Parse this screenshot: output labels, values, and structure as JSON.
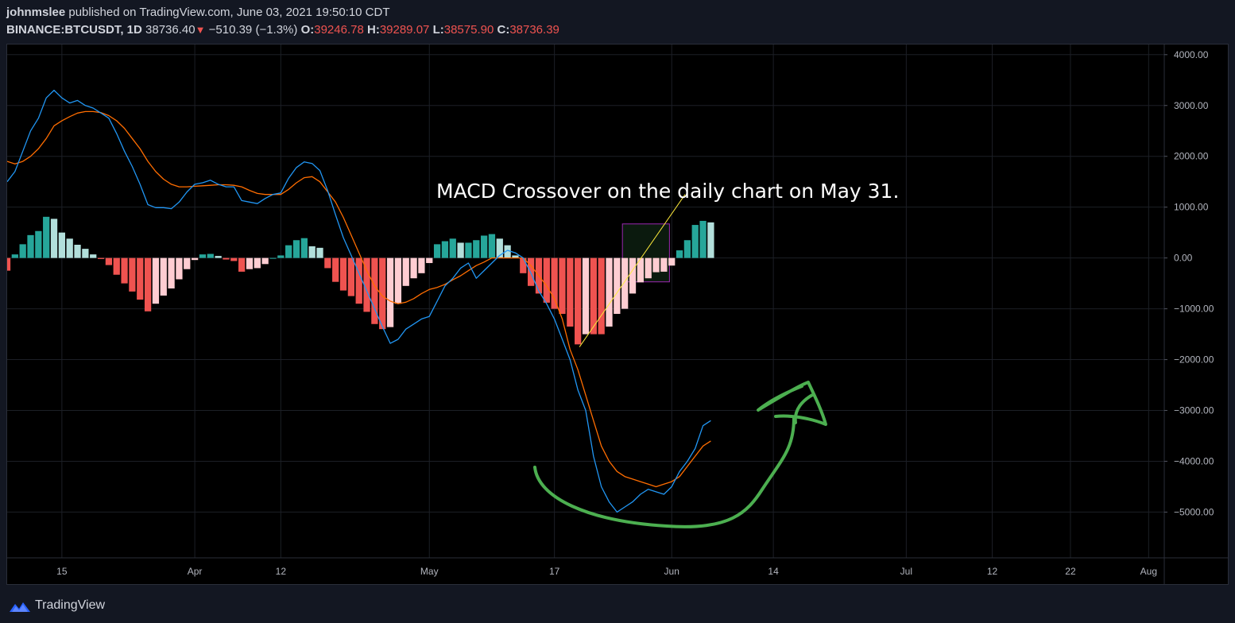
{
  "header": {
    "author": "johnmslee",
    "published_text": " published on TradingView.com, June 03, 2021 19:50:10 CDT",
    "symbol": "BINANCE:BTCUSDT, 1D",
    "price": "38736.40",
    "change_icon": "down-triangle-icon",
    "change": "−510.39 (−1.3%)",
    "open_label": "O:",
    "open": "39246.78",
    "high_label": "H:",
    "high": "39289.07",
    "low_label": "L:",
    "low": "38575.90",
    "close_label": "C:",
    "close": "38736.39"
  },
  "footer": {
    "brand": "TradingView",
    "logo_icon": "tradingview-logo-icon"
  },
  "colors": {
    "macd_line": "#2196f3",
    "signal_line": "#ff6d00",
    "hist_pos_rising": "#26a69a",
    "hist_pos_falling": "#b2dfdb",
    "hist_neg_falling": "#ef5350",
    "hist_neg_rising": "#ffcdd2",
    "drawing_green": "#4caf50",
    "trend_line": "#ffeb3b",
    "box_border": "#9c27b0",
    "box_fill": "#0d1f10"
  },
  "chart_data": {
    "type": "line",
    "title": "",
    "annotation": "MACD Crossover on the daily chart on May 31.",
    "x_axis": {
      "tick_labels": [
        "15",
        "Apr",
        "12",
        "May",
        "17",
        "Jun",
        "14",
        "Jul",
        "12",
        "22",
        "Aug"
      ],
      "tick_dates": [
        "2021-03-15",
        "2021-04-01",
        "2021-04-12",
        "2021-05-01",
        "2021-05-17",
        "2021-06-01",
        "2021-06-14",
        "2021-07-01",
        "2021-07-12",
        "2021-07-22",
        "2021-08-01"
      ],
      "range": [
        "2021-03-08",
        "2021-08-03"
      ]
    },
    "y_axis": {
      "tick_labels": [
        "4000.00",
        "3000.00",
        "2000.00",
        "1000.00",
        "0.00",
        "−1000.00",
        "−2000.00",
        "−3000.00",
        "−4000.00",
        "−5000.00"
      ],
      "ylim": [
        -5900,
        4200
      ],
      "grid": true
    },
    "start_date": "2021-03-08",
    "series": [
      {
        "role": "macd",
        "values": [
          1500,
          1700,
          2100,
          2500,
          2750,
          3150,
          3300,
          3150,
          3050,
          3100,
          3000,
          2950,
          2850,
          2750,
          2450,
          2100,
          1800,
          1450,
          1050,
          990,
          990,
          970,
          1100,
          1300,
          1450,
          1480,
          1530,
          1450,
          1400,
          1400,
          1130,
          1100,
          1070,
          1170,
          1250,
          1280,
          1570,
          1780,
          1890,
          1860,
          1720,
          1320,
          850,
          400,
          50,
          -300,
          -650,
          -1000,
          -1350,
          -1680,
          -1600,
          -1400,
          -1300,
          -1200,
          -1150,
          -850,
          -550,
          -400,
          -200,
          -100,
          -400,
          -250,
          -100,
          50,
          150,
          100,
          0,
          -300,
          -650,
          -900,
          -1200,
          -1600,
          -2000,
          -2600,
          -3000,
          -3900,
          -4500,
          -4800,
          -5000,
          -4900,
          -4800,
          -4650,
          -4550,
          -4600,
          -4650,
          -4500,
          -4200,
          -4000,
          -3750,
          -3300,
          -3200
        ]
      },
      {
        "role": "signal",
        "values": [
          1900,
          1850,
          1900,
          2000,
          2150,
          2350,
          2600,
          2700,
          2780,
          2850,
          2880,
          2880,
          2860,
          2800,
          2700,
          2550,
          2350,
          2150,
          1900,
          1700,
          1550,
          1450,
          1400,
          1400,
          1410,
          1420,
          1430,
          1440,
          1440,
          1430,
          1400,
          1330,
          1270,
          1250,
          1250,
          1250,
          1350,
          1480,
          1580,
          1600,
          1500,
          1300,
          1100,
          800,
          450,
          100,
          -250,
          -550,
          -750,
          -850,
          -900,
          -870,
          -800,
          -700,
          -620,
          -580,
          -520,
          -430,
          -350,
          -250,
          -150,
          -80,
          0,
          0,
          0,
          0,
          0,
          -150,
          -350,
          -550,
          -800,
          -1200,
          -1800,
          -2200,
          -2700,
          -3200,
          -3700,
          -4000,
          -4200,
          -4300,
          -4350,
          -4400,
          -4450,
          -4500,
          -4450,
          -4400,
          -4300,
          -4100,
          -3900,
          -3700,
          -3600
        ]
      },
      {
        "role": "histogram",
        "values": [
          -250,
          70,
          270,
          450,
          530,
          810,
          770,
          500,
          380,
          260,
          180,
          70,
          -20,
          -140,
          -330,
          -500,
          -660,
          -820,
          -1050,
          -900,
          -740,
          -600,
          -420,
          -220,
          -40,
          70,
          80,
          40,
          -30,
          -60,
          -270,
          -220,
          -200,
          -120,
          0,
          50,
          250,
          350,
          390,
          230,
          200,
          -200,
          -470,
          -640,
          -750,
          -900,
          -1060,
          -1300,
          -1400,
          -1360,
          -900,
          -550,
          -400,
          -300,
          -100,
          270,
          330,
          380,
          300,
          300,
          350,
          440,
          470,
          380,
          250,
          50,
          -300,
          -550,
          -700,
          -880,
          -1000,
          -1100,
          -1350,
          -1700,
          -1500,
          -1500,
          -1500,
          -1350,
          -1100,
          -1000,
          -700,
          -480,
          -400,
          -280,
          -270,
          -150,
          150,
          350,
          650,
          730,
          700
        ]
      }
    ]
  }
}
